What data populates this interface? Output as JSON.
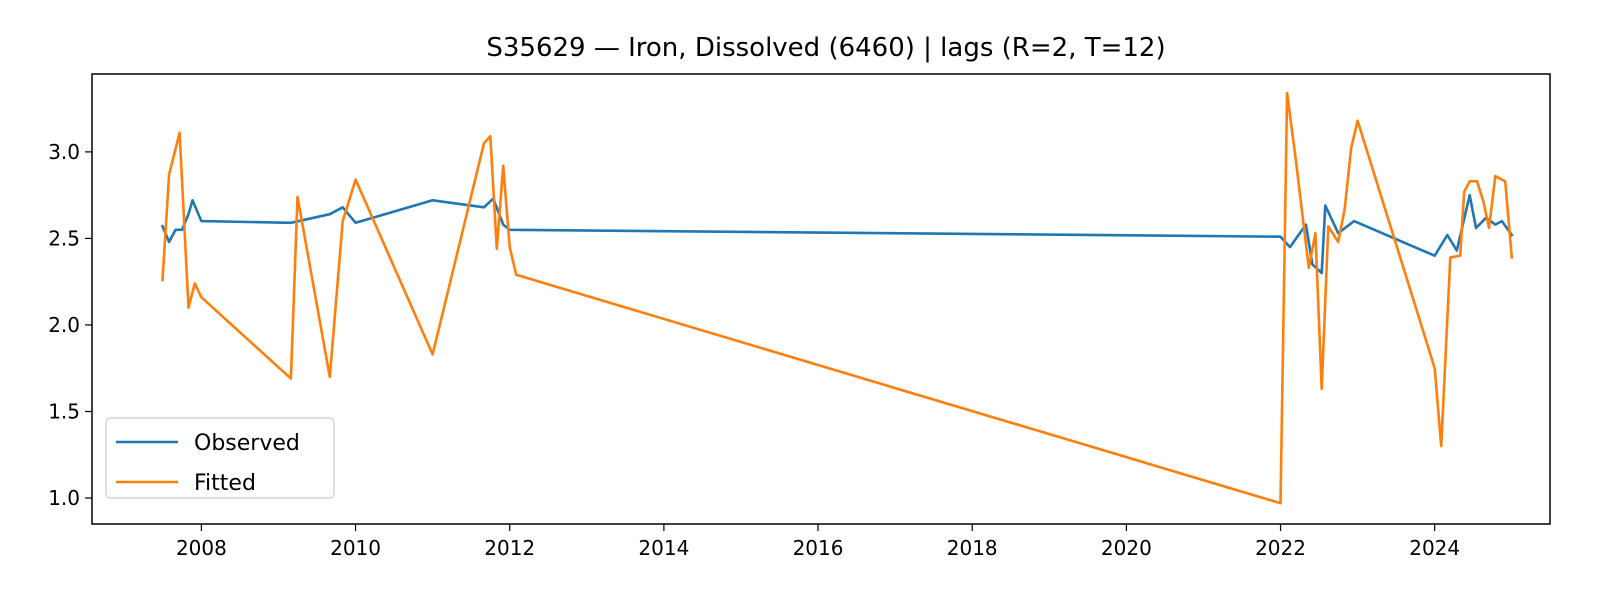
{
  "chart_data": {
    "type": "line",
    "title": "S35629 — Iron, Dissolved (6460) | lags (R=2, T=12)",
    "xlabel": "",
    "ylabel": "",
    "x_axis_type": "date",
    "xlim": [
      "2006-08-01",
      "2025-07-01"
    ],
    "ylim": [
      0.85,
      3.45
    ],
    "x_ticks": [
      "2008",
      "2010",
      "2012",
      "2014",
      "2016",
      "2018",
      "2020",
      "2022",
      "2024"
    ],
    "y_ticks": [
      "1.0",
      "1.5",
      "2.0",
      "2.5",
      "3.0"
    ],
    "grid": false,
    "legend": {
      "position": "lower-left"
    },
    "series": [
      {
        "name": "Observed",
        "color": "#1f77b4",
        "points": [
          [
            "2007-07-01",
            2.57
          ],
          [
            "2007-08-01",
            2.48
          ],
          [
            "2007-09-01",
            2.55
          ],
          [
            "2007-10-01",
            2.55
          ],
          [
            "2007-11-01",
            2.64
          ],
          [
            "2007-11-20",
            2.72
          ],
          [
            "2008-01-01",
            2.6
          ],
          [
            "2009-03-01",
            2.59
          ],
          [
            "2009-09-01",
            2.64
          ],
          [
            "2009-11-01",
            2.68
          ],
          [
            "2010-01-01",
            2.59
          ],
          [
            "2011-01-01",
            2.72
          ],
          [
            "2011-09-01",
            2.68
          ],
          [
            "2011-10-15",
            2.73
          ],
          [
            "2011-12-01",
            2.58
          ],
          [
            "2012-01-01",
            2.55
          ],
          [
            "2022-01-01",
            2.51
          ],
          [
            "2022-02-15",
            2.45
          ],
          [
            "2022-05-01",
            2.58
          ],
          [
            "2022-06-01",
            2.35
          ],
          [
            "2022-07-15",
            2.3
          ],
          [
            "2022-08-01",
            2.69
          ],
          [
            "2022-10-01",
            2.53
          ],
          [
            "2022-12-15",
            2.6
          ],
          [
            "2024-01-01",
            2.4
          ],
          [
            "2024-03-01",
            2.52
          ],
          [
            "2024-04-15",
            2.43
          ],
          [
            "2024-06-15",
            2.75
          ],
          [
            "2024-07-15",
            2.56
          ],
          [
            "2024-09-01",
            2.62
          ],
          [
            "2024-10-15",
            2.58
          ],
          [
            "2024-11-15",
            2.6
          ],
          [
            "2025-01-01",
            2.52
          ]
        ]
      },
      {
        "name": "Fitted",
        "color": "#ff7f0e",
        "points": [
          [
            "2007-07-01",
            2.26
          ],
          [
            "2007-08-01",
            2.87
          ],
          [
            "2007-09-20",
            3.11
          ],
          [
            "2007-11-01",
            2.1
          ],
          [
            "2007-12-01",
            2.24
          ],
          [
            "2008-01-01",
            2.16
          ],
          [
            "2009-03-01",
            1.69
          ],
          [
            "2009-04-01",
            2.74
          ],
          [
            "2009-09-01",
            1.7
          ],
          [
            "2009-11-01",
            2.6
          ],
          [
            "2010-01-01",
            2.84
          ],
          [
            "2011-01-01",
            1.83
          ],
          [
            "2011-09-01",
            3.05
          ],
          [
            "2011-10-01",
            3.09
          ],
          [
            "2011-11-01",
            2.44
          ],
          [
            "2011-12-01",
            2.92
          ],
          [
            "2012-01-01",
            2.45
          ],
          [
            "2012-02-01",
            2.29
          ],
          [
            "2022-01-01",
            0.97
          ],
          [
            "2022-02-01",
            3.34
          ],
          [
            "2022-03-15",
            2.95
          ],
          [
            "2022-05-15",
            2.33
          ],
          [
            "2022-06-15",
            2.53
          ],
          [
            "2022-07-15",
            1.63
          ],
          [
            "2022-08-15",
            2.57
          ],
          [
            "2022-10-01",
            2.48
          ],
          [
            "2022-11-01",
            2.67
          ],
          [
            "2022-12-01",
            3.02
          ],
          [
            "2023-01-01",
            3.18
          ],
          [
            "2024-01-01",
            1.75
          ],
          [
            "2024-02-01",
            1.3
          ],
          [
            "2024-03-15",
            2.39
          ],
          [
            "2024-05-01",
            2.4
          ],
          [
            "2024-05-20",
            2.77
          ],
          [
            "2024-06-15",
            2.83
          ],
          [
            "2024-07-20",
            2.83
          ],
          [
            "2024-08-20",
            2.71
          ],
          [
            "2024-09-15",
            2.56
          ],
          [
            "2024-10-15",
            2.86
          ],
          [
            "2024-12-01",
            2.83
          ],
          [
            "2025-01-01",
            2.39
          ]
        ]
      }
    ]
  }
}
